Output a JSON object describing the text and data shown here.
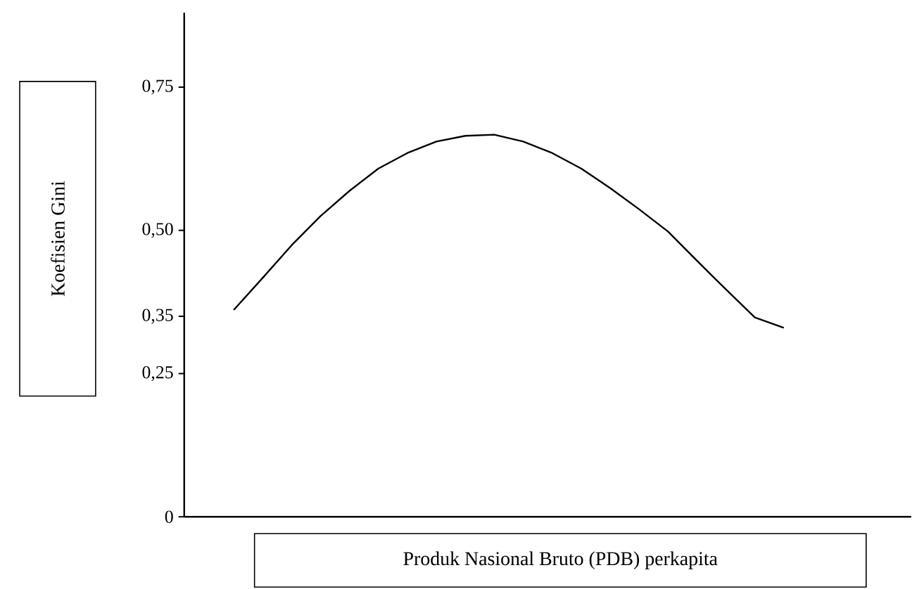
{
  "chart_data": {
    "type": "line",
    "xlabel": "Produk Nasional Bruto (PDB) perkapita",
    "ylabel": "Koefisien Gini",
    "categories": [
      null,
      null,
      null,
      null,
      null,
      null,
      null,
      null,
      null,
      null,
      null,
      null,
      null,
      null,
      null,
      null,
      null,
      null,
      null,
      null
    ],
    "values": [
      0.361,
      0.417,
      0.474,
      0.525,
      0.569,
      0.608,
      0.635,
      0.655,
      0.665,
      0.667,
      0.655,
      0.635,
      0.608,
      0.574,
      0.537,
      0.498,
      0.447,
      0.397,
      0.348,
      0.33
    ],
    "color": "#000000",
    "ylim": [
      0,
      0.88
    ],
    "yticks": [
      0,
      {
        "value": 0.25,
        "label": "0,25"
      },
      {
        "value": 0.35,
        "label": "0,35"
      },
      {
        "value": 0.5,
        "label": "0,50"
      },
      {
        "value": 0.75,
        "label": "0,75"
      }
    ],
    "tick_labels": "y"
  }
}
